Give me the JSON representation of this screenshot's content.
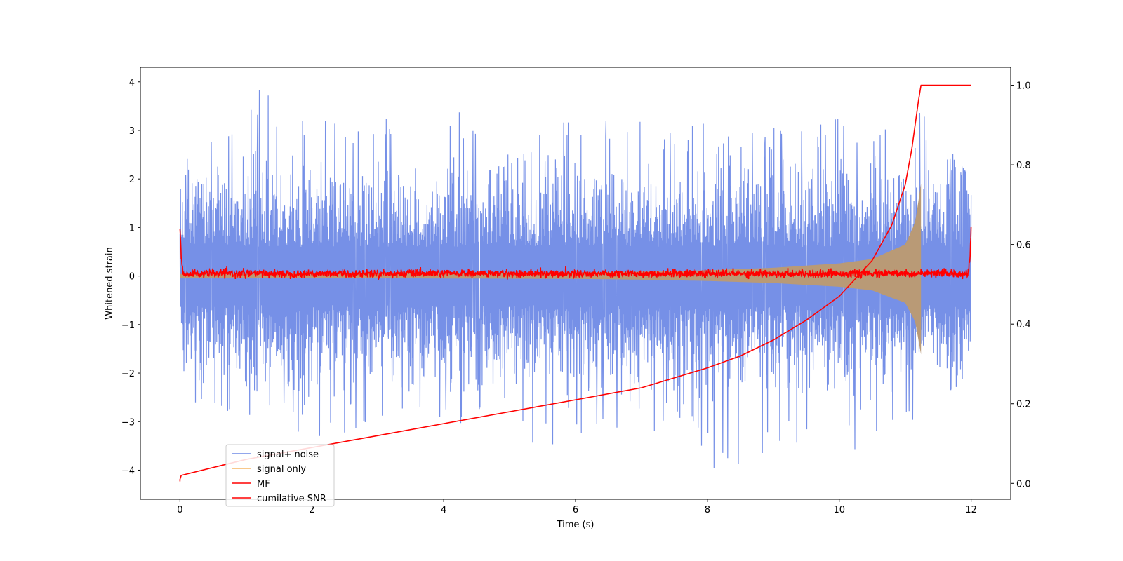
{
  "chart_data": {
    "type": "line",
    "xlabel": "Time (s)",
    "ylabel": "Whitened strain",
    "ylabel_right": "",
    "xlim": [
      -0.6,
      12.6
    ],
    "ylim": [
      -4.6,
      4.3
    ],
    "ylim_right": [
      -0.04,
      1.045
    ],
    "x_ticks": [
      0,
      2,
      4,
      6,
      8,
      10,
      12
    ],
    "x_tick_labels": [
      "0",
      "2",
      "4",
      "6",
      "8",
      "10",
      "12"
    ],
    "y_ticks": [
      -4,
      -3,
      -2,
      -1,
      0,
      1,
      2,
      3,
      4
    ],
    "y_tick_labels": [
      "−4",
      "−3",
      "−2",
      "−1",
      "0",
      "1",
      "2",
      "3",
      "4"
    ],
    "y_right_ticks": [
      0.0,
      0.2,
      0.4,
      0.6,
      0.8,
      1.0
    ],
    "y_right_tick_labels": [
      "0.0",
      "0.2",
      "0.4",
      "0.6",
      "0.8",
      "1.0"
    ],
    "grid": false,
    "legend_location": "lower-left",
    "series": [
      {
        "name": "signal+ noise",
        "color": "#6f8ae6",
        "axis": "left",
        "x_range": [
          0,
          12
        ],
        "x": [
          0,
          0.5,
          1.2,
          2.0,
          3.0,
          4.0,
          5.0,
          6.0,
          7.0,
          8.0,
          8.06,
          9.0,
          10.0,
          10.25,
          11.0,
          11.24,
          12.0
        ],
        "y_max": [
          2.3,
          2.8,
          3.9,
          3.2,
          3.2,
          3.5,
          3.0,
          3.2,
          3.2,
          3.3,
          2.8,
          3.1,
          3.3,
          3.0,
          3.7,
          3.4,
          2.0
        ],
        "y_min": [
          -2.3,
          -3.5,
          -2.7,
          -3.4,
          -3.3,
          -2.9,
          -3.4,
          -3.5,
          -3.1,
          -3.6,
          -4.2,
          -3.6,
          -3.2,
          -3.8,
          -3.0,
          -3.2,
          -1.9
        ]
      },
      {
        "name": "signal only",
        "color": "#f5b565",
        "axis": "left",
        "x": [
          0,
          2,
          4,
          6,
          7,
          8,
          9,
          10,
          10.5,
          11.0,
          11.15,
          11.24
        ],
        "envelope": [
          0.04,
          0.05,
          0.06,
          0.07,
          0.09,
          0.12,
          0.17,
          0.26,
          0.35,
          0.65,
          1.1,
          1.9
        ]
      },
      {
        "name": "MF",
        "color": "#ff0000",
        "axis": "left",
        "x_range": [
          0,
          12
        ],
        "noise_amplitude": 0.08,
        "x": [
          0,
          0.02,
          0.05,
          11.95,
          11.98,
          12.0
        ],
        "y": [
          1.0,
          0.35,
          0.05,
          0.05,
          0.35,
          0.95
        ]
      },
      {
        "name": "cumilative SNR",
        "color": "#ff0000",
        "axis": "right",
        "x": [
          0,
          0.02,
          1,
          2,
          3,
          4,
          5,
          6,
          7,
          8,
          8.5,
          9,
          9.5,
          10,
          10.5,
          10.8,
          11,
          11.1,
          11.2,
          11.24,
          12
        ],
        "y": [
          0.01,
          0.02,
          0.06,
          0.09,
          0.12,
          0.15,
          0.18,
          0.21,
          0.24,
          0.29,
          0.32,
          0.36,
          0.41,
          0.47,
          0.56,
          0.65,
          0.75,
          0.84,
          0.96,
          1.0,
          1.0
        ]
      }
    ]
  }
}
